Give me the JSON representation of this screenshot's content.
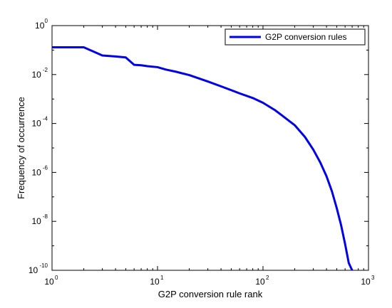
{
  "chart_data": {
    "type": "line",
    "xlabel": "G2P conversion rule rank",
    "ylabel": "Frequency of occurrence",
    "xscale": "log",
    "yscale": "log",
    "xlim": [
      1,
      1000
    ],
    "ylim": [
      1e-10,
      1
    ],
    "x_tick_labels": [
      {
        "base": "10",
        "exp": "0"
      },
      {
        "base": "10",
        "exp": "1"
      },
      {
        "base": "10",
        "exp": "2"
      },
      {
        "base": "10",
        "exp": "3"
      }
    ],
    "y_tick_labels": [
      {
        "base": "10",
        "exp": "0"
      },
      {
        "base": "10",
        "exp": "-2"
      },
      {
        "base": "10",
        "exp": "-4"
      },
      {
        "base": "10",
        "exp": "-6"
      },
      {
        "base": "10",
        "exp": "-8"
      },
      {
        "base": "10",
        "exp": "-10"
      }
    ],
    "grid": false,
    "legend_position": "top-right",
    "line_color": "#0000e6",
    "series": [
      {
        "name": "G2P conversion rules",
        "x": [
          1,
          2,
          3,
          4,
          5,
          6,
          7,
          8,
          10,
          12,
          15,
          20,
          30,
          40,
          50,
          60,
          80,
          100,
          130,
          150,
          200,
          250,
          300,
          350,
          400,
          450,
          500,
          550,
          600,
          650,
          700
        ],
        "y": [
          0.13,
          0.13,
          0.06,
          0.055,
          0.05,
          0.025,
          0.024,
          0.022,
          0.02,
          0.016,
          0.013,
          0.0095,
          0.0052,
          0.0033,
          0.0023,
          0.0017,
          0.0011,
          0.0007,
          0.00035,
          0.00022,
          8.5e-05,
          2.8e-05,
          8.5e-06,
          2.5e-06,
          7e-07,
          1.7e-07,
          3.5e-08,
          7e-09,
          1.2e-09,
          2e-10,
          1e-10
        ]
      }
    ]
  }
}
